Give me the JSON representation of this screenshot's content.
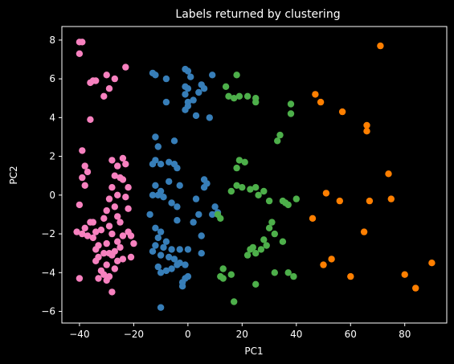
{
  "chart_data": {
    "type": "scatter",
    "title": "Labels returned by clustering",
    "xlabel": "PC1",
    "ylabel": "PC2",
    "xlim": [
      -46.5,
      95.5
    ],
    "ylim": [
      -6.6,
      8.7
    ],
    "xticks": [
      -40,
      -20,
      0,
      20,
      40,
      60,
      80
    ],
    "yticks": [
      -6,
      -4,
      -2,
      0,
      2,
      4,
      6,
      8
    ],
    "grid": false,
    "legend": "none",
    "background": "#000000",
    "series": [
      {
        "color": "#f781bf",
        "points": [
          [
            -40,
            7.9
          ],
          [
            -39,
            7.9
          ],
          [
            -40,
            7.3
          ],
          [
            -36,
            5.8
          ],
          [
            -35,
            5.9
          ],
          [
            -34,
            5.9
          ],
          [
            -36,
            3.9
          ],
          [
            -30,
            6.2
          ],
          [
            -31,
            5.1
          ],
          [
            -29,
            5.5
          ],
          [
            -27,
            6.0
          ],
          [
            -23,
            6.6
          ],
          [
            -39,
            2.3
          ],
          [
            -38,
            1.5
          ],
          [
            -37,
            1.2
          ],
          [
            -39,
            0.9
          ],
          [
            -38,
            0.5
          ],
          [
            -40,
            -0.5
          ],
          [
            -36,
            -1.4
          ],
          [
            -35,
            -1.4
          ],
          [
            -38,
            -1.7
          ],
          [
            -41,
            -1.9
          ],
          [
            -39,
            -2.0
          ],
          [
            -34,
            -1.9
          ],
          [
            -37,
            -2.1
          ],
          [
            -35,
            -2.2
          ],
          [
            -40,
            -4.3
          ],
          [
            -28,
            1.8
          ],
          [
            -26,
            1.5
          ],
          [
            -24,
            1.9
          ],
          [
            -23,
            1.6
          ],
          [
            -27,
            1.0
          ],
          [
            -25,
            0.9
          ],
          [
            -28,
            0.4
          ],
          [
            -24,
            0.8
          ],
          [
            -22,
            0.4
          ],
          [
            -26,
            0.0
          ],
          [
            -29,
            -0.2
          ],
          [
            -23,
            -0.1
          ],
          [
            -27,
            -0.6
          ],
          [
            -30,
            -0.8
          ],
          [
            -22,
            -0.7
          ],
          [
            -26,
            -1.1
          ],
          [
            -31,
            -1.2
          ],
          [
            -25,
            -1.4
          ],
          [
            -29,
            -1.6
          ],
          [
            -32,
            -1.8
          ],
          [
            -28,
            -2.0
          ],
          [
            -22,
            -1.9
          ],
          [
            -21,
            -2.1
          ],
          [
            -24,
            -2.1
          ],
          [
            -26,
            -2.4
          ],
          [
            -30,
            -2.5
          ],
          [
            -33,
            -2.6
          ],
          [
            -34,
            -2.8
          ],
          [
            -27,
            -2.9
          ],
          [
            -25,
            -2.7
          ],
          [
            -20,
            -2.5
          ],
          [
            -31,
            -3.0
          ],
          [
            -33,
            -3.2
          ],
          [
            -28,
            -3.1
          ],
          [
            -29,
            -3.0
          ],
          [
            -26,
            -3.4
          ],
          [
            -24,
            -3.3
          ],
          [
            -21,
            -3.2
          ],
          [
            -34,
            -3.4
          ],
          [
            -30,
            -3.6
          ],
          [
            -32,
            -3.9
          ],
          [
            -27,
            -3.8
          ],
          [
            -31,
            -4.1
          ],
          [
            -29,
            -4.2
          ],
          [
            -33,
            -4.3
          ],
          [
            -30,
            -4.4
          ],
          [
            -28,
            -5.0
          ]
        ]
      },
      {
        "color": "#377eb8",
        "points": [
          [
            -13,
            6.3
          ],
          [
            -12,
            6.2
          ],
          [
            -8,
            6.0
          ],
          [
            -1,
            6.5
          ],
          [
            0,
            6.4
          ],
          [
            1,
            6.1
          ],
          [
            9,
            6.2
          ],
          [
            -1,
            5.6
          ],
          [
            0,
            5.5
          ],
          [
            5,
            5.7
          ],
          [
            4,
            5.3
          ],
          [
            6,
            5.5
          ],
          [
            -8,
            4.8
          ],
          [
            -1,
            5.2
          ],
          [
            0,
            4.8
          ],
          [
            2,
            4.9
          ],
          [
            -1,
            4.4
          ],
          [
            0,
            4.6
          ],
          [
            3,
            4.1
          ],
          [
            8,
            4.0
          ],
          [
            -12,
            3.0
          ],
          [
            -11,
            2.5
          ],
          [
            -12,
            1.8
          ],
          [
            -5,
            2.8
          ],
          [
            -7,
            1.7
          ],
          [
            -5,
            1.6
          ],
          [
            -13,
            1.6
          ],
          [
            -10,
            1.6
          ],
          [
            -4,
            1.4
          ],
          [
            -12,
            0.5
          ],
          [
            -10,
            0.2
          ],
          [
            -9,
            -0.1
          ],
          [
            -7,
            0.7
          ],
          [
            -3,
            0.5
          ],
          [
            6,
            0.8
          ],
          [
            7,
            0.6
          ],
          [
            6,
            0.4
          ],
          [
            -13,
            0.0
          ],
          [
            -11,
            0.0
          ],
          [
            -6,
            -0.4
          ],
          [
            -4,
            -0.6
          ],
          [
            3,
            -0.2
          ],
          [
            10,
            -0.6
          ],
          [
            11,
            -0.9
          ],
          [
            9,
            -1.0
          ],
          [
            -14,
            -1.0
          ],
          [
            -12,
            -1.7
          ],
          [
            -10,
            -1.9
          ],
          [
            -4,
            -1.3
          ],
          [
            -8,
            -2.4
          ],
          [
            -11,
            -2.2
          ],
          [
            -12,
            -2.6
          ],
          [
            -9,
            -2.7
          ],
          [
            -13,
            -2.9
          ],
          [
            -6,
            -2.8
          ],
          [
            -3,
            -2.8
          ],
          [
            -10,
            -3.1
          ],
          [
            -7,
            -3.2
          ],
          [
            -5,
            -3.3
          ],
          [
            -3,
            -3.5
          ],
          [
            -1,
            -3.6
          ],
          [
            -4,
            -3.6
          ],
          [
            -6,
            -3.8
          ],
          [
            -8,
            -3.9
          ],
          [
            -11,
            -3.7
          ],
          [
            -10,
            -4.0
          ],
          [
            0,
            -4.2
          ],
          [
            -1,
            -4.3
          ],
          [
            -2,
            -4.5
          ],
          [
            -2,
            -4.7
          ],
          [
            5,
            -2.1
          ],
          [
            2,
            -1.4
          ],
          [
            4,
            -1.0
          ],
          [
            5,
            -3.0
          ],
          [
            0,
            -2.8
          ],
          [
            -10,
            -5.8
          ]
        ]
      },
      {
        "color": "#4daf4a",
        "points": [
          [
            14,
            5.6
          ],
          [
            18,
            6.2
          ],
          [
            15,
            5.1
          ],
          [
            17,
            5.0
          ],
          [
            19,
            5.1
          ],
          [
            22,
            5.1
          ],
          [
            25,
            5.0
          ],
          [
            25,
            4.8
          ],
          [
            38,
            4.7
          ],
          [
            38,
            4.2
          ],
          [
            34,
            3.1
          ],
          [
            33,
            2.8
          ],
          [
            19,
            1.8
          ],
          [
            21,
            1.7
          ],
          [
            18,
            1.4
          ],
          [
            18,
            0.5
          ],
          [
            20,
            0.4
          ],
          [
            23,
            0.3
          ],
          [
            16,
            0.2
          ],
          [
            25,
            0.4
          ],
          [
            26,
            0.0
          ],
          [
            28,
            0.2
          ],
          [
            30,
            -0.3
          ],
          [
            35,
            -0.3
          ],
          [
            36,
            -0.4
          ],
          [
            37,
            -0.5
          ],
          [
            40,
            -0.2
          ],
          [
            11,
            -1.0
          ],
          [
            12,
            -1.2
          ],
          [
            31,
            -1.4
          ],
          [
            30,
            -1.7
          ],
          [
            32,
            -2.0
          ],
          [
            28,
            -2.3
          ],
          [
            29,
            -2.6
          ],
          [
            35,
            -2.4
          ],
          [
            27,
            -2.8
          ],
          [
            24,
            -2.7
          ],
          [
            23,
            -2.8
          ],
          [
            25,
            -3.0
          ],
          [
            22,
            -3.1
          ],
          [
            13,
            -3.8
          ],
          [
            13,
            -4.3
          ],
          [
            12,
            -4.2
          ],
          [
            16,
            -4.1
          ],
          [
            25,
            -4.6
          ],
          [
            17,
            -5.5
          ],
          [
            32,
            -4.0
          ],
          [
            37,
            -4.0
          ],
          [
            39,
            -4.2
          ]
        ]
      },
      {
        "color": "#ff7f00",
        "points": [
          [
            71,
            7.7
          ],
          [
            47,
            5.2
          ],
          [
            49,
            4.8
          ],
          [
            57,
            4.3
          ],
          [
            66,
            3.6
          ],
          [
            66,
            3.3
          ],
          [
            74,
            1.1
          ],
          [
            51,
            0.1
          ],
          [
            56,
            -0.3
          ],
          [
            67,
            -0.3
          ],
          [
            75,
            -0.2
          ],
          [
            46,
            -1.2
          ],
          [
            65,
            -1.9
          ],
          [
            53,
            -3.3
          ],
          [
            50,
            -3.6
          ],
          [
            60,
            -4.2
          ],
          [
            80,
            -4.1
          ],
          [
            84,
            -4.8
          ],
          [
            90,
            -3.5
          ]
        ]
      }
    ]
  }
}
